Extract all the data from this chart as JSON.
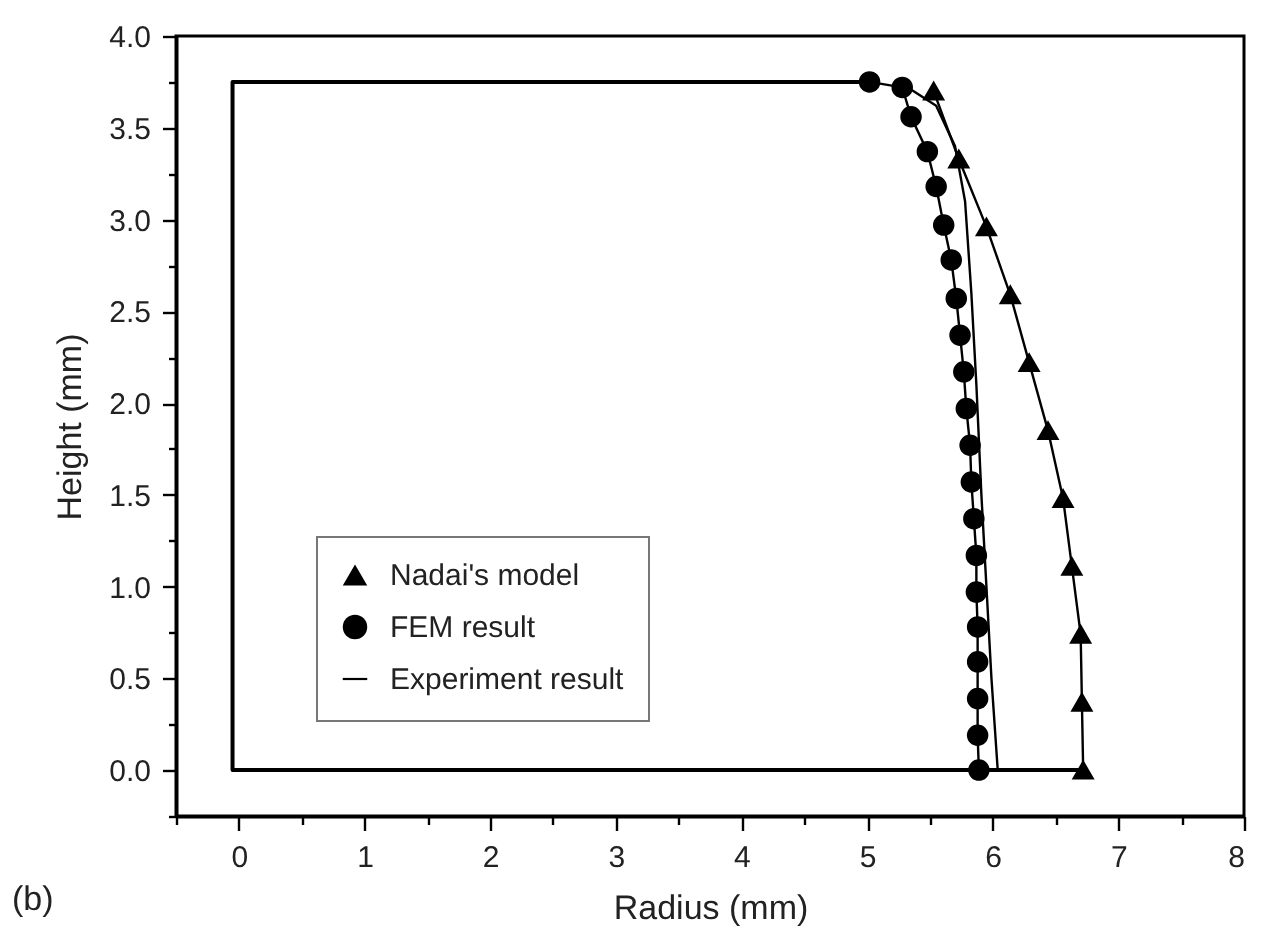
{
  "chart_data": {
    "type": "line",
    "xlabel": "Radius (mm)",
    "ylabel": "Height (mm)",
    "annotations": [
      "(b)"
    ],
    "xlim": [
      -0.5,
      8
    ],
    "ylim": [
      -0.25,
      4.0
    ],
    "xticks": [
      {
        "value": -0.5,
        "label": null
      },
      0,
      {
        "value": 0.5,
        "label": null
      },
      1,
      {
        "value": 1.5,
        "label": null
      },
      2,
      {
        "value": 2.5,
        "label": null
      },
      3,
      {
        "value": 3.5,
        "label": null
      },
      4,
      {
        "value": 4.5,
        "label": null
      },
      5,
      {
        "value": 5.5,
        "label": null
      },
      6,
      {
        "value": 6.5,
        "label": null
      },
      7,
      {
        "value": 7.5,
        "label": null
      },
      8
    ],
    "yticks": [
      {
        "value": -0.25,
        "label": null
      },
      {
        "value": 0,
        "label": "0.0"
      },
      {
        "value": 0.25,
        "label": null
      },
      {
        "value": 0.5,
        "label": "0.5"
      },
      {
        "value": 0.75,
        "label": null
      },
      {
        "value": 1,
        "label": "1.0"
      },
      {
        "value": 1.25,
        "label": null
      },
      {
        "value": 1.5,
        "label": "1.5"
      },
      {
        "value": 1.75,
        "label": null
      },
      {
        "value": 2,
        "label": "2.0"
      },
      {
        "value": 2.25,
        "label": null
      },
      {
        "value": 2.5,
        "label": "2.5"
      },
      {
        "value": 2.75,
        "label": null
      },
      {
        "value": 3,
        "label": "3.0"
      },
      {
        "value": 3.25,
        "label": null
      },
      {
        "value": 3.5,
        "label": "3.5"
      },
      {
        "value": 3.75,
        "label": null
      },
      {
        "value": 4,
        "label": "4.0"
      }
    ],
    "grid": false,
    "legend": "bottom left",
    "line_style": "solid",
    "series": [
      {
        "color": "#000000",
        "x": [
          6.72,
          -0.05,
          -0.05,
          5.02
        ],
        "values": [
          0,
          0,
          3.75,
          3.75
        ]
      },
      {
        "name": "Nadai's model",
        "marker": "triangle",
        "color": "#000000",
        "x": [
          6.72,
          6.71,
          6.7,
          6.63,
          6.56,
          6.44,
          6.29,
          6.14,
          5.95,
          5.73,
          5.53
        ],
        "values": [
          0,
          0.37,
          0.74,
          1.11,
          1.48,
          1.85,
          2.22,
          2.59,
          2.96,
          3.33,
          3.7
        ]
      },
      {
        "name": "FEM result",
        "marker": "circle",
        "color": "#000000",
        "x": [
          5.89,
          5.88,
          5.88,
          5.88,
          5.88,
          5.87,
          5.87,
          5.85,
          5.83,
          5.82,
          5.79,
          5.77,
          5.74,
          5.71,
          5.67,
          5.61,
          5.55,
          5.48,
          5.35,
          5.28,
          5.02
        ],
        "values": [
          0,
          0.19,
          0.39,
          0.59,
          0.78,
          0.97,
          1.17,
          1.37,
          1.57,
          1.77,
          1.97,
          2.17,
          2.37,
          2.57,
          2.78,
          2.97,
          3.18,
          3.37,
          3.56,
          3.72,
          3.75
        ]
      },
      {
        "name": "Experiment result",
        "marker": "none",
        "color": "#000000",
        "x": [
          6.04,
          5.99,
          5.95,
          5.91,
          5.87,
          5.83,
          5.78,
          5.7,
          5.55,
          5.3
        ],
        "values": [
          0,
          0.5,
          1.0,
          1.5,
          2.1,
          2.6,
          3.1,
          3.4,
          3.62,
          3.73
        ]
      }
    ]
  }
}
